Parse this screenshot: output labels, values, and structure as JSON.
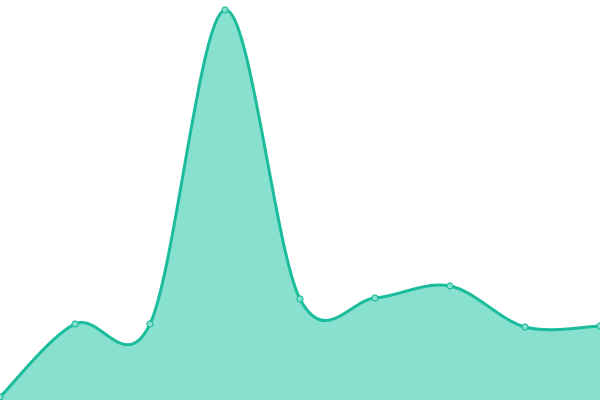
{
  "chart_data": {
    "type": "area",
    "title": "",
    "xlabel": "",
    "ylabel": "",
    "x": [
      0,
      1,
      2,
      3,
      4,
      5,
      6,
      7,
      8
    ],
    "values": [
      3,
      76,
      76,
      390,
      101,
      102,
      114,
      73,
      74
    ],
    "ylim": [
      0,
      400
    ],
    "grid": false,
    "interpolation": "smooth",
    "colors": {
      "line": "#1abc9c",
      "fill": "#88e0cf",
      "marker": "#88e0cf"
    }
  }
}
